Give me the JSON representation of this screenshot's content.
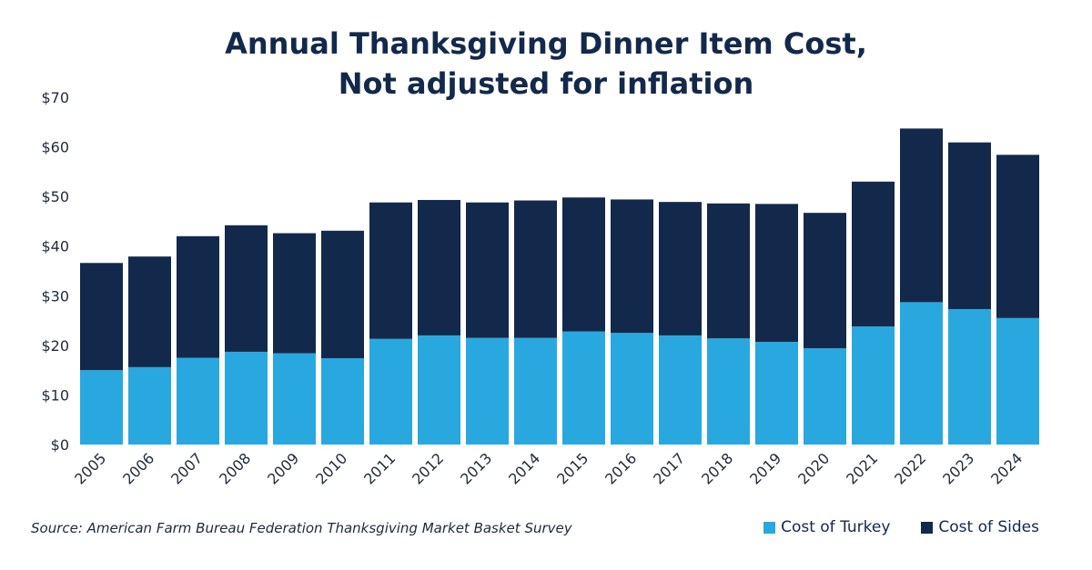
{
  "title_line1": "Annual Thanksgiving Dinner Item Cost,",
  "title_line2": "Not adjusted for inflation",
  "source": "Source: American Farm Bureau Federation Thanksgiving Market Basket Survey",
  "colors": {
    "turkey": "#29a8e0",
    "sides": "#13294b",
    "text": "#13294b"
  },
  "chart_data": {
    "type": "bar",
    "stacked": true,
    "categories": [
      "2005",
      "2006",
      "2007",
      "2008",
      "2009",
      "2010",
      "2011",
      "2012",
      "2013",
      "2014",
      "2015",
      "2016",
      "2017",
      "2018",
      "2019",
      "2020",
      "2021",
      "2022",
      "2023",
      "2024"
    ],
    "series": [
      {
        "name": "Cost of Turkey",
        "values": [
          15.0,
          15.6,
          17.5,
          18.7,
          18.4,
          17.4,
          21.3,
          22.0,
          21.5,
          21.5,
          22.8,
          22.5,
          22.0,
          21.4,
          20.7,
          19.4,
          23.8,
          28.7,
          27.3,
          25.5
        ]
      },
      {
        "name": "Cost of Sides",
        "values": [
          21.6,
          22.3,
          24.5,
          25.5,
          24.2,
          25.7,
          27.5,
          27.3,
          27.3,
          27.7,
          27.0,
          26.9,
          26.9,
          27.2,
          27.8,
          27.3,
          29.2,
          35.0,
          33.6,
          32.9
        ]
      }
    ],
    "ylim": [
      0,
      70
    ],
    "yticks": [
      0,
      10,
      20,
      30,
      40,
      50,
      60,
      70
    ],
    "ytick_labels": [
      "$0",
      "$10",
      "$20",
      "$30",
      "$40",
      "$50",
      "$60",
      "$70"
    ],
    "grid": false,
    "legend_position": "bottom-right"
  }
}
